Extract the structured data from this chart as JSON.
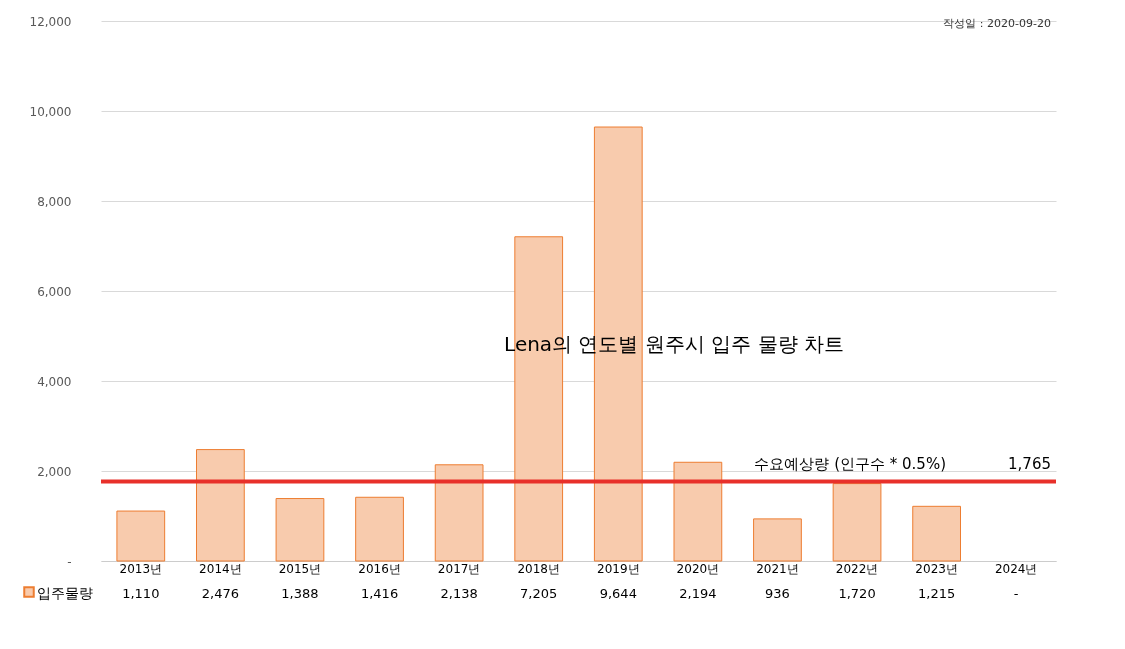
{
  "chart_data": {
    "type": "bar",
    "title": "Lena의 연도별 원주시 입주 물량 차트",
    "categories": [
      "2013년",
      "2014년",
      "2015년",
      "2016년",
      "2017년",
      "2018년",
      "2019년",
      "2020년",
      "2021년",
      "2022년",
      "2023년",
      "2024년"
    ],
    "series": [
      {
        "name": "입주물량",
        "color": "#f8cbad",
        "values": [
          1110,
          2476,
          1388,
          1416,
          2138,
          7205,
          9644,
          2194,
          936,
          1720,
          1215,
          null
        ],
        "value_labels": [
          "1,110",
          "2,476",
          "1,388",
          "1,416",
          "2,138",
          "7,205",
          "9,644",
          "2,194",
          "936",
          "1,720",
          "1,215",
          "-"
        ]
      }
    ],
    "ylim": [
      0,
      12000
    ],
    "yticks": [
      {
        "value": 0,
        "label": "-"
      },
      {
        "value": 2000,
        "label": "2,000"
      },
      {
        "value": 4000,
        "label": "4,000"
      },
      {
        "value": 6000,
        "label": "6,000"
      },
      {
        "value": 8000,
        "label": "8,000"
      },
      {
        "value": 10000,
        "label": "10,000"
      },
      {
        "value": 12000,
        "label": "12,000"
      }
    ],
    "grid": "y",
    "legend": "bottom left",
    "ref_lines": [
      {
        "axis": "y",
        "value": 1765,
        "label": "수요예상량 (인구수 * 0.5%)",
        "color": "#e8302a"
      }
    ],
    "annotations": [
      "작성일 : 2020-09-20",
      {
        "text": "1,765",
        "y": 1765
      }
    ]
  }
}
